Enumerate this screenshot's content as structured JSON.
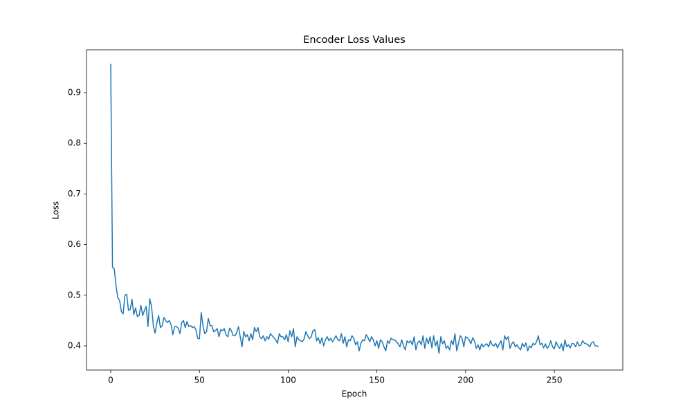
{
  "chart_data": {
    "type": "line",
    "title": "Encoder Loss Values",
    "x_label": "Epoch",
    "y_label": "Loss",
    "x": [
      0,
      1,
      2,
      3,
      4,
      5,
      6,
      7,
      8,
      9,
      10,
      11,
      12,
      13,
      14,
      15,
      16,
      17,
      18,
      19,
      20,
      21,
      22,
      23,
      24,
      25,
      26,
      27,
      28,
      29,
      30,
      31,
      32,
      33,
      34,
      35,
      36,
      37,
      38,
      39,
      40,
      41,
      42,
      43,
      44,
      45,
      46,
      47,
      48,
      49,
      50,
      51,
      52,
      53,
      54,
      55,
      56,
      57,
      58,
      59,
      60,
      61,
      62,
      63,
      64,
      65,
      66,
      67,
      68,
      69,
      70,
      71,
      72,
      73,
      74,
      75,
      76,
      77,
      78,
      79,
      80,
      81,
      82,
      83,
      84,
      85,
      86,
      87,
      88,
      89,
      90,
      91,
      92,
      93,
      94,
      95,
      96,
      97,
      98,
      99,
      100,
      101,
      102,
      103,
      104,
      105,
      106,
      107,
      108,
      109,
      110,
      111,
      112,
      113,
      114,
      115,
      116,
      117,
      118,
      119,
      120,
      121,
      122,
      123,
      124,
      125,
      126,
      127,
      128,
      129,
      130,
      131,
      132,
      133,
      134,
      135,
      136,
      137,
      138,
      139,
      140,
      141,
      142,
      143,
      144,
      145,
      146,
      147,
      148,
      149,
      150,
      151,
      152,
      153,
      154,
      155,
      156,
      157,
      158,
      159,
      160,
      161,
      162,
      163,
      164,
      165,
      166,
      167,
      168,
      169,
      170,
      171,
      172,
      173,
      174,
      175,
      176,
      177,
      178,
      179,
      180,
      181,
      182,
      183,
      184,
      185,
      186,
      187,
      188,
      189,
      190,
      191,
      192,
      193,
      194,
      195,
      196,
      197,
      198,
      199,
      200,
      201,
      202,
      203,
      204,
      205,
      206,
      207,
      208,
      209,
      210,
      211,
      212,
      213,
      214,
      215,
      216,
      217,
      218,
      219,
      220,
      221,
      222,
      223,
      224,
      225,
      226,
      227,
      228,
      229,
      230,
      231,
      232,
      233,
      234,
      235,
      236,
      237,
      238,
      239,
      240,
      241,
      242,
      243,
      244,
      245,
      246,
      247,
      248,
      249,
      250,
      251,
      252,
      253,
      254,
      255,
      256,
      257,
      258,
      259,
      260,
      261,
      262,
      263,
      264,
      265,
      266,
      267,
      268,
      269,
      270,
      271,
      272,
      273,
      274,
      275
    ],
    "values": [
      0.957,
      0.555,
      0.552,
      0.518,
      0.495,
      0.49,
      0.468,
      0.463,
      0.5,
      0.502,
      0.47,
      0.472,
      0.492,
      0.462,
      0.475,
      0.458,
      0.46,
      0.48,
      0.46,
      0.47,
      0.478,
      0.438,
      0.493,
      0.478,
      0.44,
      0.425,
      0.445,
      0.46,
      0.436,
      0.44,
      0.456,
      0.45,
      0.446,
      0.45,
      0.442,
      0.422,
      0.438,
      0.438,
      0.435,
      0.424,
      0.446,
      0.45,
      0.436,
      0.448,
      0.438,
      0.44,
      0.436,
      0.438,
      0.432,
      0.415,
      0.414,
      0.466,
      0.44,
      0.424,
      0.428,
      0.454,
      0.44,
      0.44,
      0.428,
      0.43,
      0.434,
      0.418,
      0.432,
      0.43,
      0.434,
      0.422,
      0.418,
      0.435,
      0.43,
      0.42,
      0.42,
      0.426,
      0.438,
      0.418,
      0.398,
      0.428,
      0.418,
      0.422,
      0.41,
      0.424,
      0.412,
      0.436,
      0.428,
      0.436,
      0.418,
      0.414,
      0.42,
      0.41,
      0.418,
      0.413,
      0.424,
      0.42,
      0.416,
      0.412,
      0.405,
      0.424,
      0.418,
      0.418,
      0.412,
      0.422,
      0.408,
      0.43,
      0.418,
      0.434,
      0.398,
      0.418,
      0.412,
      0.41,
      0.408,
      0.414,
      0.428,
      0.42,
      0.414,
      0.418,
      0.43,
      0.432,
      0.41,
      0.416,
      0.404,
      0.416,
      0.4,
      0.412,
      0.418,
      0.41,
      0.415,
      0.408,
      0.414,
      0.42,
      0.412,
      0.41,
      0.424,
      0.405,
      0.418,
      0.398,
      0.412,
      0.41,
      0.42,
      0.415,
      0.402,
      0.408,
      0.39,
      0.405,
      0.412,
      0.41,
      0.422,
      0.416,
      0.408,
      0.418,
      0.412,
      0.4,
      0.41,
      0.395,
      0.412,
      0.408,
      0.398,
      0.39,
      0.41,
      0.405,
      0.415,
      0.412,
      0.412,
      0.408,
      0.404,
      0.398,
      0.412,
      0.4,
      0.392,
      0.41,
      0.406,
      0.41,
      0.402,
      0.418,
      0.392,
      0.406,
      0.41,
      0.402,
      0.42,
      0.395,
      0.415,
      0.404,
      0.418,
      0.396,
      0.42,
      0.4,
      0.41,
      0.385,
      0.418,
      0.404,
      0.41,
      0.395,
      0.4,
      0.392,
      0.41,
      0.402,
      0.424,
      0.39,
      0.405,
      0.42,
      0.415,
      0.398,
      0.418,
      0.416,
      0.412,
      0.404,
      0.416,
      0.41,
      0.395,
      0.402,
      0.392,
      0.404,
      0.398,
      0.402,
      0.404,
      0.398,
      0.41,
      0.402,
      0.4,
      0.405,
      0.396,
      0.404,
      0.41,
      0.392,
      0.42,
      0.412,
      0.418,
      0.395,
      0.404,
      0.408,
      0.398,
      0.402,
      0.396,
      0.392,
      0.405,
      0.398,
      0.406,
      0.39,
      0.4,
      0.396,
      0.405,
      0.402,
      0.408,
      0.42,
      0.402,
      0.405,
      0.396,
      0.404,
      0.395,
      0.4,
      0.41,
      0.398,
      0.394,
      0.408,
      0.4,
      0.395,
      0.404,
      0.39,
      0.412,
      0.398,
      0.402,
      0.396,
      0.405,
      0.404,
      0.398,
      0.408,
      0.4,
      0.402,
      0.41,
      0.405,
      0.404,
      0.402,
      0.398,
      0.406,
      0.408,
      0.4,
      0.4,
      0.398
    ],
    "color": "#1f77b4",
    "xlim": [
      -13.65,
      288.6
    ],
    "ylim": [
      0.3522,
      0.9847
    ],
    "xticks": [
      0,
      50,
      100,
      150,
      200,
      250
    ],
    "yticks": [
      0.4,
      0.5,
      0.6,
      0.7,
      0.8,
      0.9
    ]
  }
}
